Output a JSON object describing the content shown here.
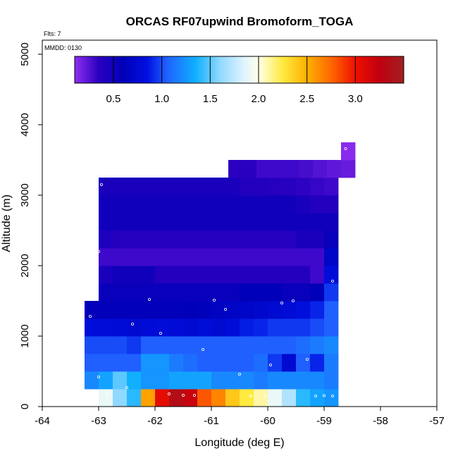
{
  "chart_data": {
    "type": "heatmap",
    "title": "ORCAS RF07upwind Bromoform_TOGA",
    "xlabel": "Longitude (deg E)",
    "ylabel": "Altitude (m)",
    "xlim": [
      -64,
      -57
    ],
    "ylim": [
      0,
      5200
    ],
    "x_ticks": [
      "-64",
      "-63",
      "-62",
      "-61",
      "-60",
      "-59",
      "-58",
      "-57"
    ],
    "x_tick_values": [
      -64,
      -63,
      -62,
      -61,
      -60,
      -59,
      -58,
      -57
    ],
    "y_ticks": [
      "0",
      "1000",
      "2000",
      "3000",
      "4000",
      "5000"
    ],
    "y_tick_values": [
      0,
      1000,
      2000,
      3000,
      4000,
      5000
    ],
    "annotations": [
      "Flts: 7",
      "MMDD: 0130"
    ],
    "colorbar": {
      "range": [
        0.1,
        3.5
      ],
      "tick_labels": [
        "0.5",
        "1.0",
        "1.5",
        "2.0",
        "2.5",
        "3.0"
      ],
      "tick_values": [
        0.5,
        1.0,
        1.5,
        2.0,
        2.5,
        3.0
      ],
      "stops": [
        {
          "v": 0.1,
          "c": "#8f2ff0"
        },
        {
          "v": 0.35,
          "c": "#2a00c0"
        },
        {
          "v": 0.6,
          "c": "#0000b8"
        },
        {
          "v": 0.85,
          "c": "#0010e0"
        },
        {
          "v": 1.05,
          "c": "#2060ff"
        },
        {
          "v": 1.35,
          "c": "#10b0ff"
        },
        {
          "v": 1.6,
          "c": "#90d8ff"
        },
        {
          "v": 1.85,
          "c": "#e0f4ff"
        },
        {
          "v": 2.0,
          "c": "#ffffe8"
        },
        {
          "v": 2.25,
          "c": "#ffea40"
        },
        {
          "v": 2.5,
          "c": "#ffb000"
        },
        {
          "v": 2.75,
          "c": "#ff6800"
        },
        {
          "v": 3.0,
          "c": "#ee1000"
        },
        {
          "v": 3.25,
          "c": "#c00010"
        },
        {
          "v": 3.5,
          "c": "#a02020"
        }
      ]
    },
    "x_bins": [
      -63.25,
      -63.0,
      -62.75,
      -62.5,
      -62.25,
      -62.0,
      -61.75,
      -61.5,
      -61.25,
      -61.0,
      -60.75,
      -60.5,
      -60.25,
      -60.0,
      -59.75,
      -59.5,
      -59.25,
      -59.0,
      -58.75,
      -58.5
    ],
    "y_bins": [
      250,
      500,
      750,
      1000,
      1250,
      1500,
      1750,
      2000,
      2250,
      2500,
      2750,
      3000,
      3250,
      3500,
      3750
    ],
    "rows": [
      {
        "y0": 0,
        "y1": 250,
        "x0": -63.0,
        "values": [
          1.9,
          1.6,
          1.4,
          2.55,
          3.05,
          3.35,
          3.2,
          2.8,
          2.65,
          2.4,
          2.25,
          2.1,
          1.9,
          1.7,
          1.4,
          1.3,
          1.25
        ]
      },
      {
        "y0": 250,
        "y1": 500,
        "x0": -63.25,
        "values": [
          1.2,
          1.3,
          1.5,
          1.35,
          1.25,
          1.25,
          1.3,
          1.3,
          1.3,
          1.2,
          1.2,
          1.2,
          1.15,
          1.2,
          1.2,
          1.2,
          1.2,
          1.15
        ]
      },
      {
        "y0": 500,
        "y1": 750,
        "x0": -63.25,
        "values": [
          1.05,
          1.05,
          1.05,
          1.05,
          1.25,
          1.25,
          1.15,
          1.1,
          1.05,
          1.05,
          1.05,
          1.05,
          1.1,
          0.95,
          0.75,
          1.05,
          0.9,
          1.15
        ]
      },
      {
        "y0": 750,
        "y1": 1000,
        "x0": -63.25,
        "values": [
          1.0,
          1.0,
          1.0,
          0.95,
          1.05,
          1.05,
          1.05,
          1.05,
          1.05,
          1.05,
          1.05,
          1.05,
          1.05,
          1.05,
          1.05,
          1.1,
          1.15,
          1.2
        ]
      },
      {
        "y0": 1000,
        "y1": 1250,
        "x0": -63.25,
        "values": [
          0.8,
          0.8,
          0.78,
          0.75,
          0.78,
          0.8,
          0.78,
          0.75,
          0.8,
          0.75,
          0.8,
          0.88,
          0.9,
          0.95,
          0.95,
          0.95,
          1.0,
          1.05
        ]
      },
      {
        "y0": 1250,
        "y1": 1500,
        "x0": -63.25,
        "values": [
          0.58,
          0.58,
          0.58,
          0.58,
          0.58,
          0.58,
          0.58,
          0.6,
          0.62,
          0.65,
          0.68,
          0.7,
          0.72,
          0.75,
          0.78,
          0.82,
          0.9,
          1.05
        ]
      },
      {
        "y0": 1500,
        "y1": 1750,
        "x0": -63.0,
        "values": [
          0.55,
          0.55,
          0.55,
          0.55,
          0.55,
          0.55,
          0.55,
          0.55,
          0.55,
          0.55,
          0.6,
          0.6,
          0.6,
          0.55,
          0.55,
          0.6,
          0.95
        ]
      },
      {
        "y0": 1750,
        "y1": 2000,
        "x0": -63.0,
        "values": [
          0.45,
          0.5,
          0.5,
          0.5,
          0.4,
          0.4,
          0.4,
          0.4,
          0.4,
          0.4,
          0.4,
          0.4,
          0.4,
          0.4,
          0.4,
          0.3,
          0.8
        ]
      },
      {
        "y0": 2000,
        "y1": 2250,
        "x0": -63.0,
        "values": [
          0.3,
          0.3,
          0.3,
          0.3,
          0.3,
          0.3,
          0.3,
          0.3,
          0.3,
          0.3,
          0.3,
          0.3,
          0.3,
          0.3,
          0.3,
          0.3,
          0.7
        ]
      },
      {
        "y0": 2250,
        "y1": 2500,
        "x0": -63.0,
        "values": [
          0.42,
          0.38,
          0.38,
          0.38,
          0.38,
          0.38,
          0.38,
          0.38,
          0.38,
          0.38,
          0.38,
          0.38,
          0.38,
          0.38,
          0.45,
          0.45,
          0.55
        ]
      },
      {
        "y0": 2500,
        "y1": 2750,
        "x0": -63.0,
        "values": [
          0.5,
          0.5,
          0.5,
          0.5,
          0.5,
          0.5,
          0.5,
          0.5,
          0.5,
          0.5,
          0.5,
          0.5,
          0.5,
          0.5,
          0.5,
          0.5,
          0.5
        ]
      },
      {
        "y0": 2750,
        "y1": 3000,
        "x0": -63.0,
        "values": [
          0.5,
          0.5,
          0.5,
          0.5,
          0.5,
          0.5,
          0.5,
          0.5,
          0.5,
          0.5,
          0.5,
          0.5,
          0.5,
          0.5,
          0.45,
          0.4,
          0.4
        ]
      },
      {
        "y0": 3000,
        "y1": 3250,
        "x0": -63.0,
        "values": [
          0.45,
          0.45,
          0.45,
          0.45,
          0.45,
          0.45,
          0.45,
          0.45,
          0.45,
          0.45,
          0.4,
          0.4,
          0.38,
          0.36,
          0.34,
          0.32,
          0.3
        ]
      },
      {
        "y0": 3250,
        "y1": 3500,
        "x0": -60.7,
        "values": [
          0.35,
          0.35,
          0.3,
          0.3,
          0.3,
          0.28,
          0.25,
          0.22,
          0.2
        ]
      },
      {
        "y0": 3500,
        "y1": 3750,
        "x0": -58.7,
        "values": [
          0.12
        ]
      }
    ],
    "sample_points": [
      [
        -62.95,
        3150
      ],
      [
        -63.0,
        2200
      ],
      [
        -63.15,
        1280
      ],
      [
        -62.1,
        1520
      ],
      [
        -62.4,
        1170
      ],
      [
        -61.9,
        1040
      ],
      [
        -60.95,
        1510
      ],
      [
        -60.75,
        1380
      ],
      [
        -59.75,
        1470
      ],
      [
        -59.55,
        1500
      ],
      [
        -58.85,
        1780
      ],
      [
        -58.72,
        2740
      ],
      [
        -58.62,
        3660
      ],
      [
        -61.15,
        810
      ],
      [
        -60.5,
        460
      ],
      [
        -59.95,
        590
      ],
      [
        -59.3,
        670
      ],
      [
        -58.65,
        870
      ],
      [
        -63.0,
        420
      ],
      [
        -62.5,
        270
      ],
      [
        -62.85,
        170
      ],
      [
        -61.75,
        180
      ],
      [
        -61.5,
        160
      ],
      [
        -61.3,
        160
      ],
      [
        -60.3,
        150
      ],
      [
        -60.05,
        160
      ],
      [
        -59.15,
        150
      ],
      [
        -59.0,
        155
      ],
      [
        -58.85,
        150
      ],
      [
        -58.7,
        145
      ]
    ]
  }
}
